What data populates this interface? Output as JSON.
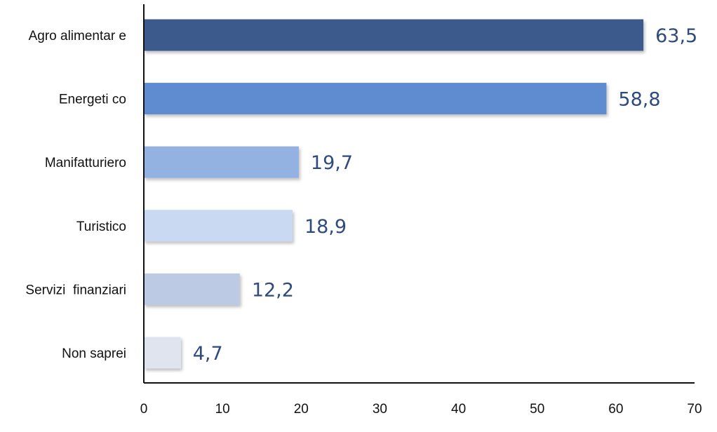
{
  "chart_data": {
    "type": "bar",
    "orientation": "horizontal",
    "categories": [
      "Agro alimentar e",
      "Energeti co",
      "Manifatturiero",
      "Turistico",
      "Servizi  finanziari",
      "Non saprei"
    ],
    "values": [
      63.5,
      58.8,
      19.7,
      18.9,
      12.2,
      4.7
    ],
    "value_labels": [
      "63,5",
      "58,8",
      "19,7",
      "18,9",
      "12,2",
      "4,7"
    ],
    "bar_colors": [
      "#3d5a8c",
      "#5f8bd1",
      "#93b2e1",
      "#c9d9f1",
      "#bccbe3",
      "#dfe4ef"
    ],
    "xlim": [
      0,
      70
    ],
    "xticks": [
      0,
      10,
      20,
      30,
      40,
      50,
      60,
      70
    ],
    "xtick_labels": [
      "0",
      "10",
      "20",
      "30",
      "40",
      "50",
      "60",
      "70"
    ],
    "grid": false,
    "title": "",
    "xlabel": "",
    "ylabel": ""
  }
}
